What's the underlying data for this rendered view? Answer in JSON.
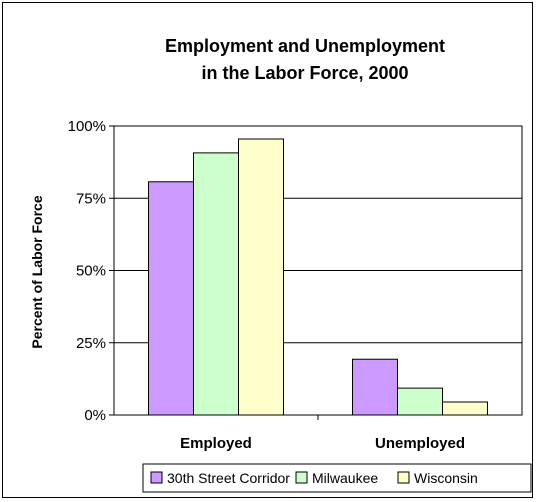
{
  "chart_data": {
    "type": "bar",
    "title": [
      "Employment and Unemployment",
      "in the Labor Force, 2000"
    ],
    "xlabel": "",
    "ylabel": "Percent of Labor Force",
    "categories": [
      "Employed",
      "Unemployed"
    ],
    "series": [
      {
        "name": "30th Street Corridor",
        "values": [
          80.7,
          19.3
        ],
        "color": "#cc99ff"
      },
      {
        "name": "Milwaukee",
        "values": [
          90.7,
          9.3
        ],
        "color": "#ccffcc"
      },
      {
        "name": "Wisconsin",
        "values": [
          95.5,
          4.5
        ],
        "color": "#ffffcc"
      }
    ],
    "ylim": [
      0,
      100
    ],
    "yticks": [
      0,
      25,
      50,
      75,
      100
    ],
    "ytick_labels": [
      "0%",
      "25%",
      "50%",
      "75%",
      "100%"
    ],
    "grid": true,
    "legend_position": "bottom"
  }
}
